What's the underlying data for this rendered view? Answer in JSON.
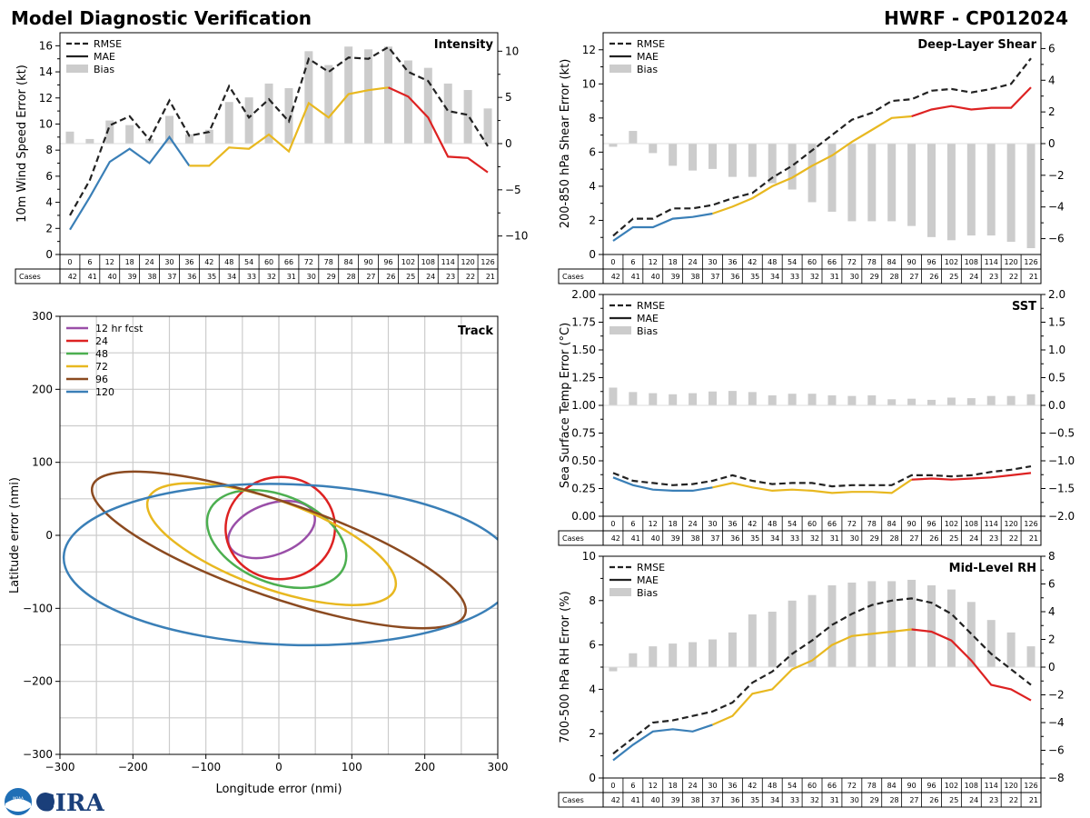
{
  "header": {
    "title": "Model Diagnostic Verification",
    "model_id": "HWRF - CP012024"
  },
  "logo": {
    "noaa_text": "NOAA",
    "cira_text": "CIRA"
  },
  "table": {
    "hours": [
      "0",
      "6",
      "12",
      "18",
      "24",
      "30",
      "36",
      "42",
      "48",
      "54",
      "60",
      "66",
      "72",
      "78",
      "84",
      "90",
      "96",
      "102",
      "108",
      "114",
      "120",
      "126"
    ],
    "cases_label": "Cases",
    "cases": [
      "42",
      "41",
      "40",
      "39",
      "38",
      "37",
      "36",
      "35",
      "34",
      "33",
      "32",
      "31",
      "30",
      "29",
      "28",
      "27",
      "26",
      "25",
      "24",
      "23",
      "22",
      "21"
    ]
  },
  "colors": {
    "rmse": "#222222",
    "bias": "#cccccc",
    "mae_early": "#3a7fb7",
    "mae_mid": "#e8b820",
    "mae_late": "#dd2222",
    "track": [
      "#9a4fa8",
      "#dd2222",
      "#4caf50",
      "#e8b820",
      "#8b4a20",
      "#3a7fb7"
    ]
  },
  "chart_data": [
    {
      "id": "intensity",
      "type": "line",
      "title": "Intensity",
      "ylabel": "10m Wind Speed Error (kt)",
      "ylim": [
        0,
        17
      ],
      "yticks": [
        0,
        2,
        4,
        6,
        8,
        10,
        12,
        14,
        16
      ],
      "y2lim": [
        -12,
        12
      ],
      "y2ticks": [
        -10,
        -5,
        0,
        5,
        10
      ],
      "mae_segments": [
        7,
        17
      ],
      "legend": [
        "RMSE",
        "MAE",
        "Bias"
      ],
      "rmse": [
        3.0,
        5.7,
        9.9,
        10.6,
        8.8,
        11.8,
        9.1,
        9.4,
        12.9,
        10.5,
        11.9,
        10.2,
        15.0,
        14.0,
        15.1,
        15.0,
        15.9,
        14.0,
        13.3,
        11.0,
        10.7,
        8.3
      ],
      "mae": [
        1.9,
        4.4,
        7.1,
        8.1,
        7.0,
        9.0,
        6.8,
        6.8,
        8.2,
        8.1,
        9.2,
        7.9,
        11.6,
        10.5,
        12.3,
        12.6,
        12.8,
        12.1,
        10.5,
        7.5,
        7.4,
        6.3
      ],
      "bias": [
        1.3,
        0.5,
        2.5,
        2.0,
        0.5,
        3.0,
        1.0,
        1.5,
        4.5,
        5.0,
        6.5,
        6.0,
        10.0,
        8.5,
        10.5,
        10.2,
        10.5,
        9.0,
        8.2,
        6.5,
        5.8,
        3.8
      ]
    },
    {
      "id": "shear",
      "type": "line",
      "title": "Deep-Layer Shear",
      "ylabel": "200-850 hPa Shear Error (kt)",
      "ylim": [
        0,
        13
      ],
      "yticks": [
        0,
        2,
        4,
        6,
        8,
        10,
        12
      ],
      "y2lim": [
        -7,
        7
      ],
      "y2ticks": [
        -6,
        -4,
        -2,
        0,
        2,
        4,
        6
      ],
      "mae_segments": [
        6,
        16
      ],
      "legend": [
        "RMSE",
        "MAE",
        "Bias"
      ],
      "rmse": [
        1.1,
        2.1,
        2.1,
        2.7,
        2.7,
        2.9,
        3.3,
        3.6,
        4.5,
        5.2,
        6.1,
        7.0,
        7.9,
        8.3,
        9.0,
        9.1,
        9.6,
        9.7,
        9.5,
        9.7,
        10.0,
        11.5
      ],
      "mae": [
        0.8,
        1.6,
        1.6,
        2.1,
        2.2,
        2.4,
        2.8,
        3.3,
        4.0,
        4.5,
        5.2,
        5.8,
        6.6,
        7.3,
        8.0,
        8.1,
        8.5,
        8.7,
        8.5,
        8.6,
        8.6,
        9.8
      ],
      "bias": [
        -0.2,
        0.8,
        -0.6,
        -1.4,
        -1.7,
        -1.6,
        -2.1,
        -2.1,
        -2.5,
        -2.9,
        -3.7,
        -4.3,
        -4.9,
        -4.9,
        -4.9,
        -5.2,
        -5.9,
        -6.1,
        -5.8,
        -5.8,
        -6.2,
        -6.6
      ]
    },
    {
      "id": "sst",
      "type": "line",
      "title": "SST",
      "ylabel": "Sea Surface Temp Error (°C)",
      "ylim": [
        0,
        2.0
      ],
      "yticks": [
        0.0,
        0.25,
        0.5,
        0.75,
        1.0,
        1.25,
        1.5,
        1.75,
        2.0
      ],
      "yticklabels": [
        "0.00",
        "0.25",
        "0.50",
        "0.75",
        "1.00",
        "1.25",
        "1.50",
        "1.75",
        "2.00"
      ],
      "y2lim": [
        -2.0,
        2.0
      ],
      "y2ticks": [
        -2.0,
        -1.5,
        -1.0,
        -0.5,
        0.0,
        0.5,
        1.0,
        1.5,
        2.0
      ],
      "y2ticklabels": [
        "−2.0",
        "−1.5",
        "−1.0",
        "−0.5",
        "0.0",
        "0.5",
        "1.0",
        "1.5",
        "2.0"
      ],
      "mae_segments": [
        6,
        16
      ],
      "legend": [
        "RMSE",
        "MAE",
        "Bias"
      ],
      "rmse": [
        0.39,
        0.32,
        0.3,
        0.28,
        0.29,
        0.32,
        0.37,
        0.32,
        0.29,
        0.3,
        0.3,
        0.27,
        0.28,
        0.28,
        0.28,
        0.37,
        0.37,
        0.36,
        0.37,
        0.4,
        0.42,
        0.45
      ],
      "mae": [
        0.35,
        0.28,
        0.24,
        0.23,
        0.23,
        0.26,
        0.3,
        0.26,
        0.23,
        0.24,
        0.23,
        0.21,
        0.22,
        0.22,
        0.21,
        0.33,
        0.34,
        0.33,
        0.34,
        0.35,
        0.37,
        0.39
      ],
      "bias": [
        0.32,
        0.24,
        0.22,
        0.2,
        0.22,
        0.25,
        0.26,
        0.24,
        0.18,
        0.21,
        0.21,
        0.18,
        0.17,
        0.18,
        0.11,
        0.12,
        0.1,
        0.14,
        0.13,
        0.17,
        0.17,
        0.2
      ]
    },
    {
      "id": "rh",
      "type": "line",
      "title": "Mid-Level RH",
      "ylabel": "700-500 hPa RH Error (%)",
      "ylim": [
        0,
        10
      ],
      "yticks": [
        0,
        2,
        4,
        6,
        8,
        10
      ],
      "y2lim": [
        -8,
        8
      ],
      "y2ticks": [
        -8,
        -6,
        -4,
        -2,
        0,
        2,
        4,
        6,
        8
      ],
      "mae_segments": [
        6,
        16
      ],
      "legend": [
        "RMSE",
        "MAE",
        "Bias"
      ],
      "rmse": [
        1.1,
        1.8,
        2.5,
        2.6,
        2.8,
        3.0,
        3.4,
        4.3,
        4.8,
        5.6,
        6.2,
        6.9,
        7.4,
        7.8,
        8.0,
        8.1,
        7.9,
        7.4,
        6.5,
        5.6,
        4.9,
        4.2
      ],
      "mae": [
        0.8,
        1.5,
        2.1,
        2.2,
        2.1,
        2.4,
        2.8,
        3.8,
        4.0,
        4.9,
        5.3,
        6.0,
        6.4,
        6.5,
        6.6,
        6.7,
        6.6,
        6.2,
        5.3,
        4.2,
        4.0,
        3.5
      ],
      "bias": [
        -0.3,
        1.0,
        1.5,
        1.7,
        1.8,
        2.0,
        2.5,
        3.8,
        4.0,
        4.8,
        5.2,
        5.9,
        6.1,
        6.2,
        6.2,
        6.3,
        5.9,
        5.6,
        4.7,
        3.4,
        2.5,
        1.5
      ]
    },
    {
      "id": "track",
      "type": "ellipse",
      "title": "Track",
      "xlabel": "Longitude error (nmi)",
      "ylabel": "Latitude error (nmi)",
      "xlim": [
        -300,
        300
      ],
      "ylim": [
        -300,
        300
      ],
      "xticks": [
        -300,
        -200,
        -100,
        0,
        100,
        200,
        300
      ],
      "xticklabels": [
        "−300",
        "−200",
        "−100",
        "0",
        "100",
        "200",
        "300"
      ],
      "yticks": [
        -300,
        -200,
        -100,
        0,
        100,
        200,
        300
      ],
      "yticklabels": [
        "−300",
        "−200",
        "−100",
        "0",
        "100",
        "200",
        "300"
      ],
      "grid_step": 50,
      "legend": [
        "12 hr fcst",
        "24",
        "48",
        "72",
        "96",
        "120"
      ],
      "ellipses": [
        {
          "label": "12 hr fcst",
          "cx": -10,
          "cy": 8,
          "a": 62,
          "b": 35,
          "angle": 20
        },
        {
          "label": "24",
          "cx": 2,
          "cy": 10,
          "a": 75,
          "b": 70,
          "angle": 5
        },
        {
          "label": "48",
          "cx": -3,
          "cy": -5,
          "a": 100,
          "b": 60,
          "angle": -22
        },
        {
          "label": "72",
          "cx": -10,
          "cy": -12,
          "a": 180,
          "b": 60,
          "angle": -20
        },
        {
          "label": "96",
          "cx": 0,
          "cy": -20,
          "a": 270,
          "b": 65,
          "angle": -19
        },
        {
          "label": "120",
          "cx": 15,
          "cy": -40,
          "a": 310,
          "b": 110,
          "angle": -2
        }
      ]
    }
  ]
}
